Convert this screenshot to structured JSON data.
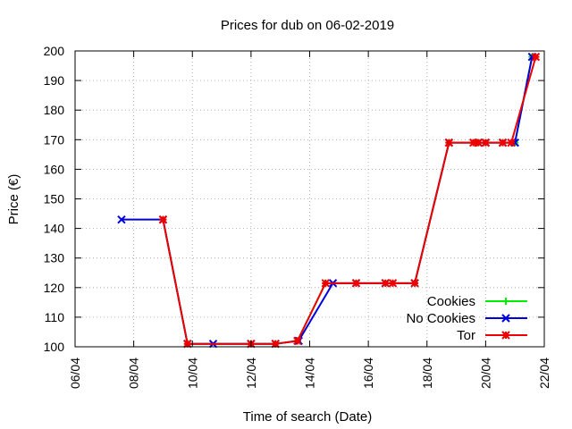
{
  "chart_data": {
    "type": "line",
    "title": "Prices for dub on 06-02-2019",
    "xlabel": "Time of search (Date)",
    "ylabel": "Price (€)",
    "x_type": "date",
    "xlim": [
      "2019-04-06",
      "2019-04-22"
    ],
    "ylim": [
      100,
      200
    ],
    "x_ticks": [
      "2019-04-06",
      "2019-04-08",
      "2019-04-10",
      "2019-04-12",
      "2019-04-14",
      "2019-04-16",
      "2019-04-18",
      "2019-04-20",
      "2019-04-22"
    ],
    "x_tick_labels": [
      "06/04",
      "08/04",
      "10/04",
      "12/04",
      "14/04",
      "16/04",
      "18/04",
      "20/04",
      "22/04"
    ],
    "y_ticks": [
      100,
      110,
      120,
      130,
      140,
      150,
      160,
      170,
      180,
      190,
      200
    ],
    "grid": true,
    "legend_position": "bottom-right",
    "series": [
      {
        "name": "Cookies",
        "color": "#00ee00",
        "marker": "plus",
        "points": [
          [
            "2019-04-09T00:00",
            143
          ],
          [
            "2019-04-09T20:00",
            101
          ],
          [
            "2019-04-12T00:00",
            101
          ],
          [
            "2019-04-12T20:00",
            101
          ],
          [
            "2019-04-13T14:00",
            102
          ],
          [
            "2019-04-14T13:00",
            121.5
          ],
          [
            "2019-04-15T14:00",
            121.5
          ],
          [
            "2019-04-16T14:00",
            121.5
          ],
          [
            "2019-04-16T20:00",
            121.5
          ],
          [
            "2019-04-17T14:00",
            121.5
          ],
          [
            "2019-04-18T18:00",
            169
          ],
          [
            "2019-04-19T18:00",
            169
          ],
          [
            "2019-04-20T00:00",
            169
          ],
          [
            "2019-04-20T14:00",
            169
          ],
          [
            "2019-04-21T00:00",
            169
          ],
          [
            "2019-04-21T14:00",
            198
          ]
        ]
      },
      {
        "name": "No Cookies",
        "color": "#0000dd",
        "marker": "cross",
        "points": [
          [
            "2019-04-07T14:00",
            143
          ],
          [
            "2019-04-09T00:00",
            143
          ],
          [
            "2019-04-09T20:00",
            101
          ],
          [
            "2019-04-10T17:00",
            101
          ],
          [
            "2019-04-12T00:00",
            101
          ],
          [
            "2019-04-12T20:00",
            101
          ],
          [
            "2019-04-13T15:00",
            102
          ],
          [
            "2019-04-14T19:00",
            121.5
          ],
          [
            "2019-04-15T14:00",
            121.5
          ],
          [
            "2019-04-16T14:00",
            121.5
          ],
          [
            "2019-04-17T14:00",
            121.5
          ],
          [
            "2019-04-18T18:00",
            169
          ],
          [
            "2019-04-19T18:00",
            169
          ],
          [
            "2019-04-20T00:00",
            169
          ],
          [
            "2019-04-20T14:00",
            169
          ],
          [
            "2019-04-21T00:00",
            169
          ],
          [
            "2019-04-21T14:00",
            198
          ]
        ]
      },
      {
        "name": "Tor",
        "color": "#ee0000",
        "marker": "star",
        "points": [
          [
            "2019-04-09T00:00",
            143
          ],
          [
            "2019-04-09T20:00",
            101
          ],
          [
            "2019-04-12T00:00",
            101
          ],
          [
            "2019-04-12T20:00",
            101
          ],
          [
            "2019-04-13T14:00",
            102
          ],
          [
            "2019-04-14T13:00",
            121.5
          ],
          [
            "2019-04-15T14:00",
            121.5
          ],
          [
            "2019-04-16T14:00",
            121.5
          ],
          [
            "2019-04-16T20:00",
            121.5
          ],
          [
            "2019-04-17T14:00",
            121.5
          ],
          [
            "2019-04-18T18:00",
            169
          ],
          [
            "2019-04-19T14:00",
            169
          ],
          [
            "2019-04-19T18:00",
            169
          ],
          [
            "2019-04-20T00:00",
            169
          ],
          [
            "2019-04-20T14:00",
            169
          ],
          [
            "2019-04-20T21:00",
            169
          ],
          [
            "2019-04-21T17:00",
            198
          ]
        ]
      }
    ]
  }
}
